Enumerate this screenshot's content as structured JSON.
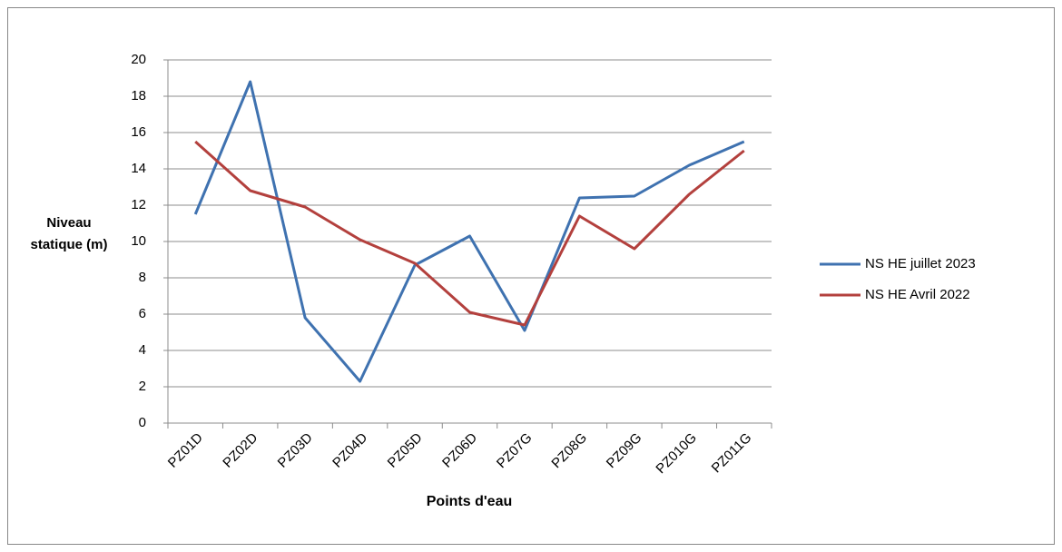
{
  "chart_data": {
    "type": "line",
    "x_label": "Points d'eau",
    "y_label": "Niveau statique (m)",
    "categories": [
      "PZ01D",
      "PZ02D",
      "PZ03D",
      "PZ04D",
      "PZ05D",
      "PZ06D",
      "PZ07G",
      "PZ08G",
      "PZ09G",
      "PZ010G",
      "PZ011G"
    ],
    "series": [
      {
        "name": "NS HE juillet 2023",
        "color": "#3f72b0",
        "values": [
          11.5,
          18.8,
          5.8,
          2.3,
          8.7,
          10.3,
          5.1,
          12.4,
          12.5,
          14.2,
          15.5
        ]
      },
      {
        "name": "NS HE Avril 2022",
        "color": "#b3403d",
        "values": [
          15.5,
          12.8,
          11.9,
          10.1,
          8.8,
          6.1,
          5.4,
          11.4,
          9.6,
          12.6,
          15.0
        ]
      }
    ],
    "ylim": [
      0,
      20
    ],
    "yticks": [
      0,
      2,
      4,
      6,
      8,
      10,
      12,
      14,
      16,
      18,
      20
    ],
    "grid": true,
    "legend": "right"
  }
}
